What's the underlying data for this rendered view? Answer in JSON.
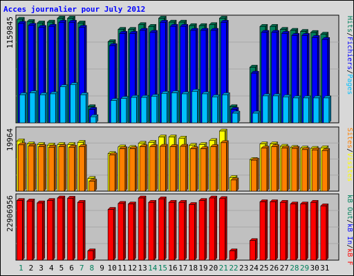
{
  "title": "Acces journalier pour July 2012",
  "colors": {
    "hits": "#00805c",
    "files": "#0000ff",
    "pages": "#00c0ff",
    "visits": "#ffff00",
    "sites": "#ff8000",
    "kb_f": "#ff0000",
    "kb_in": "#0000ff",
    "kb_out": "#00805c",
    "frame": "#d8d8d8",
    "plot": "#c0c0c0",
    "weekend": "#00805c",
    "weekday": "#000000"
  },
  "chart_data": [
    {
      "type": "bar",
      "panel": "hits-files-pages",
      "max_label": "1159845",
      "ylim": [
        0,
        1159845
      ],
      "legend": [
        "Pages",
        "/",
        "Fichiers",
        "/",
        "Hits"
      ],
      "categories": [
        "1",
        "2",
        "3",
        "4",
        "5",
        "6",
        "7",
        "8",
        "9",
        "10",
        "11",
        "12",
        "13",
        "14",
        "15",
        "16",
        "17",
        "18",
        "19",
        "20",
        "21",
        "22",
        "23",
        "24",
        "25",
        "26",
        "27",
        "28",
        "29",
        "30",
        "31"
      ],
      "series": [
        {
          "name": "Hits",
          "values": [
            1159845,
            1135000,
            1118000,
            1128000,
            1172000,
            1172000,
            1118000,
            180000,
            0,
            909000,
            1047000,
            1047000,
            1100000,
            1080000,
            1172000,
            1128000,
            1128000,
            1089000,
            1089000,
            1100000,
            1172000,
            180000,
            0,
            623000,
            1080000,
            1080000,
            1047000,
            1036000,
            1024000,
            1012000,
            993000
          ]
        },
        {
          "name": "Fichiers",
          "values": [
            1114000,
            1092000,
            1069000,
            1081000,
            1126000,
            1126000,
            1069000,
            150000,
            0,
            865000,
            1002000,
            1002000,
            1036000,
            1013000,
            1126000,
            1081000,
            1081000,
            1036000,
            1036000,
            1036000,
            1126000,
            150000,
            0,
            556000,
            1013000,
            1013000,
            1002000,
            979000,
            979000,
            956000,
            934000
          ]
        },
        {
          "name": "Pages",
          "values": [
            314000,
            336000,
            314000,
            325000,
            404000,
            427000,
            314000,
            68000,
            0,
            250000,
            273000,
            285000,
            285000,
            296000,
            330000,
            336000,
            325000,
            353000,
            325000,
            291000,
            314000,
            108000,
            0,
            108000,
            302000,
            302000,
            291000,
            279000,
            279000,
            279000,
            279000
          ]
        }
      ]
    },
    {
      "type": "bar",
      "panel": "visits-sites",
      "max_label": "19964",
      "ylim": [
        0,
        19964
      ],
      "legend": [
        "Visites",
        "/",
        "Sites"
      ],
      "categories": [
        "1",
        "2",
        "3",
        "4",
        "5",
        "6",
        "7",
        "8",
        "9",
        "10",
        "11",
        "12",
        "13",
        "14",
        "15",
        "16",
        "17",
        "18",
        "19",
        "20",
        "21",
        "22",
        "23",
        "24",
        "25",
        "26",
        "27",
        "28",
        "29",
        "30",
        "31"
      ],
      "series": [
        {
          "name": "Visites",
          "values": [
            16700,
            15700,
            15500,
            15300,
            15500,
            15500,
            16200,
            4200,
            0,
            12500,
            14700,
            14500,
            15900,
            16200,
            18000,
            18000,
            17600,
            15200,
            15500,
            16800,
            19964,
            4500,
            0,
            10500,
            15700,
            15700,
            14900,
            14500,
            14300,
            14200,
            14400
          ]
        },
        {
          "name": "Sites",
          "values": [
            15400,
            15000,
            14800,
            14600,
            14800,
            14600,
            14800,
            3300,
            0,
            12000,
            14100,
            14100,
            14800,
            14800,
            14900,
            14800,
            14900,
            14100,
            14100,
            14800,
            16100,
            3700,
            0,
            10300,
            14300,
            14800,
            14300,
            14200,
            13800,
            13700,
            13500
          ]
        }
      ]
    },
    {
      "type": "bar",
      "panel": "kbytes",
      "max_label": "22906956",
      "ylim": [
        0,
        22906956
      ],
      "legend": [
        "kB F",
        "/",
        "kB In",
        "/",
        "kB Out"
      ],
      "categories": [
        "1",
        "2",
        "3",
        "4",
        "5",
        "6",
        "7",
        "8",
        "9",
        "10",
        "11",
        "12",
        "13",
        "14",
        "15",
        "16",
        "17",
        "18",
        "19",
        "20",
        "21",
        "22",
        "23",
        "24",
        "25",
        "26",
        "27",
        "28",
        "29",
        "30",
        "31"
      ],
      "series": [
        {
          "name": "kB F",
          "values": [
            22000000,
            21800000,
            21100000,
            22000000,
            22906956,
            22800000,
            21300000,
            3400000,
            0,
            18700000,
            20900000,
            20700000,
            22906956,
            21300000,
            22600000,
            21300000,
            21300000,
            20500000,
            22000000,
            22906956,
            22700000,
            3400000,
            0,
            7200000,
            21500000,
            21500000,
            21300000,
            20700000,
            20700000,
            21300000,
            20000000
          ]
        }
      ]
    }
  ]
}
